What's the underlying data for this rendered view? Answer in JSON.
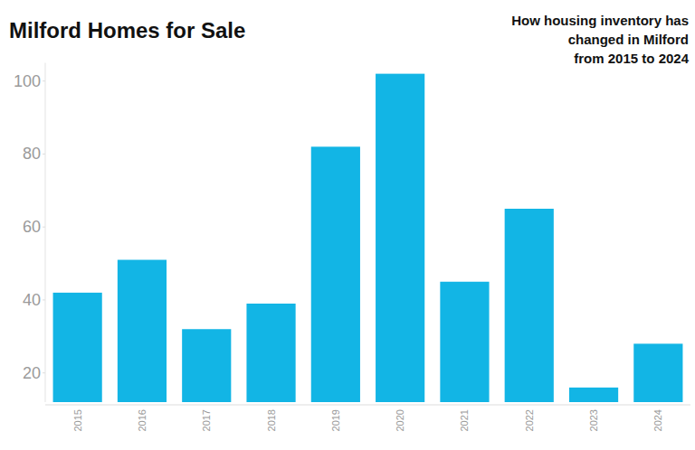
{
  "chart_data": {
    "type": "bar",
    "title": "Milford Homes for Sale",
    "subtitle": [
      "How housing inventory has",
      "changed in Milford",
      "from 2015 to 2024"
    ],
    "categories": [
      "2015",
      "2016",
      "2017",
      "2018",
      "2019",
      "2020",
      "2021",
      "2022",
      "2023",
      "2024"
    ],
    "values": [
      42,
      51,
      32,
      39,
      82,
      102,
      45,
      65,
      16,
      28
    ],
    "color": "#12b5e5",
    "ylim": [
      12,
      105
    ],
    "yticks": [
      20,
      40,
      60,
      80,
      100
    ],
    "grid": false
  }
}
